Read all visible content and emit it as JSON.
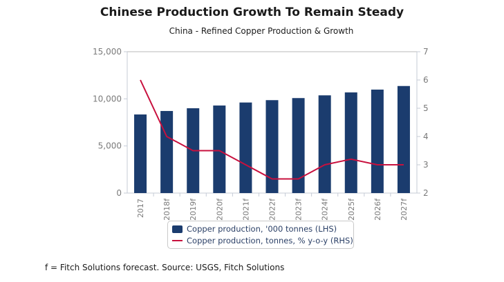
{
  "header": {
    "title": "Chinese Production Growth To Remain Steady",
    "subtitle": "China - Refined Copper Production & Growth"
  },
  "footnote": "f = Fitch Solutions forecast. Source: USGS, Fitch Solutions",
  "colors": {
    "bar": "#1b3c6e",
    "line": "#c8103e",
    "axis": "#c5cbd6",
    "grid": "#dcdcdc"
  },
  "chart_data": {
    "type": "bar",
    "title": "Chinese Production Growth To Remain Steady",
    "subtitle": "China - Refined Copper Production & Growth",
    "categories": [
      "2017",
      "2018f",
      "2019f",
      "2020f",
      "2021f",
      "2022f",
      "2023f",
      "2024f",
      "2025f",
      "2026f",
      "2027f"
    ],
    "series": [
      {
        "name": "Copper production, '000 tonnes (LHS)",
        "type": "bar",
        "axis": "left",
        "values": [
          8340,
          8710,
          9000,
          9290,
          9610,
          9860,
          10080,
          10370,
          10680,
          10980,
          11360
        ]
      },
      {
        "name": "Copper production, tonnes, % y-o-y (RHS)",
        "type": "line",
        "axis": "right",
        "values": [
          6.0,
          4.0,
          3.5,
          3.5,
          3.0,
          2.5,
          2.5,
          3.0,
          3.2,
          3.0,
          3.0
        ]
      }
    ],
    "left_axis": {
      "ylim": [
        0,
        15000
      ],
      "ticks": [
        0,
        5000,
        10000,
        15000
      ],
      "tick_labels": [
        "0",
        "5,000",
        "10,000",
        "15,000"
      ]
    },
    "right_axis": {
      "ylim": [
        2,
        7
      ],
      "ticks": [
        2,
        3,
        4,
        5,
        6,
        7
      ],
      "tick_labels": [
        "2",
        "3",
        "4",
        "5",
        "6",
        "7"
      ]
    },
    "xlabel": "",
    "ylabel": "",
    "grid": false,
    "legend_position": "bottom-center"
  },
  "legend": {
    "items": [
      {
        "label": "Copper production, '000 tonnes (LHS)",
        "kind": "bar"
      },
      {
        "label": "Copper production, tonnes, % y-o-y (RHS)",
        "kind": "line"
      }
    ]
  }
}
